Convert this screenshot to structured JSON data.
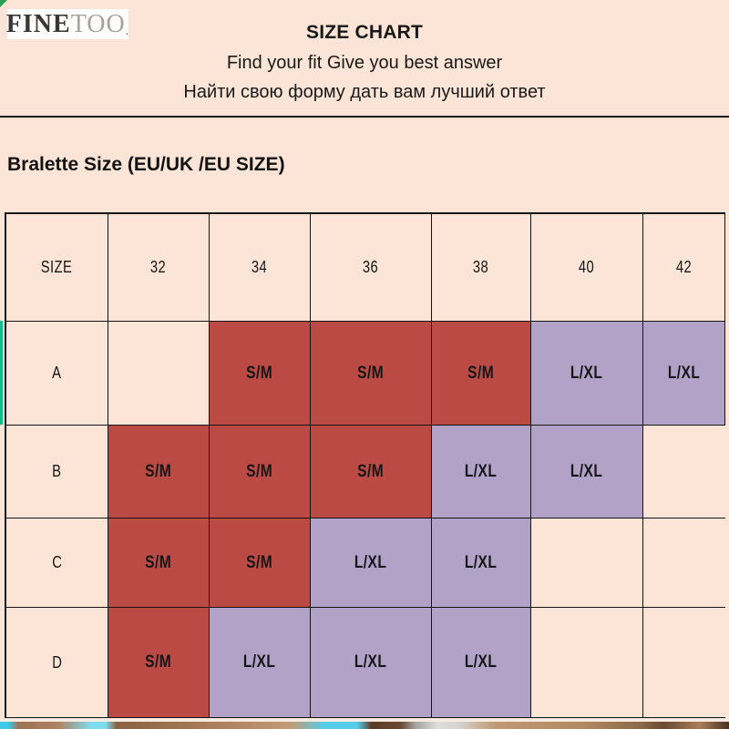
{
  "brand": {
    "primary": "FINE",
    "secondary": "TOO",
    "mark": "."
  },
  "header": {
    "title": "SIZE CHART",
    "subtitle_en": "Find your fit Give you best answer",
    "subtitle_ru": "Найти свою форму дать вам лучший ответ"
  },
  "section_heading": "Bralette Size (EU/UK /EU SIZE)",
  "chart_data": {
    "type": "table",
    "title": "Bralette Size (EU/UK /EU SIZE)",
    "columns": [
      "SIZE",
      "32",
      "34",
      "36",
      "38",
      "40",
      "42"
    ],
    "rows": [
      {
        "label": "A",
        "cells": [
          "",
          "S/M",
          "S/M",
          "S/M",
          "L/XL",
          "L/XL"
        ]
      },
      {
        "label": "B",
        "cells": [
          "S/M",
          "S/M",
          "S/M",
          "L/XL",
          "L/XL",
          ""
        ]
      },
      {
        "label": "C",
        "cells": [
          "S/M",
          "S/M",
          "L/XL",
          "L/XL",
          "",
          ""
        ]
      },
      {
        "label": "D",
        "cells": [
          "S/M",
          "L/XL",
          "L/XL",
          "L/XL",
          "",
          ""
        ]
      }
    ],
    "value_colors": {
      "S/M": "#bb4a45",
      "L/XL": "#b2a2c8"
    },
    "legend_note": "S/M cells shown red, L/XL cells shown purple, blank cells cream"
  },
  "colors": {
    "background": "#fce5d6",
    "grid_line": "#141414",
    "text": "#1a1a1a",
    "accent_green": "#12bb8d",
    "sm_red": "#bb4a45",
    "lxl_purple": "#b2a2c8"
  }
}
